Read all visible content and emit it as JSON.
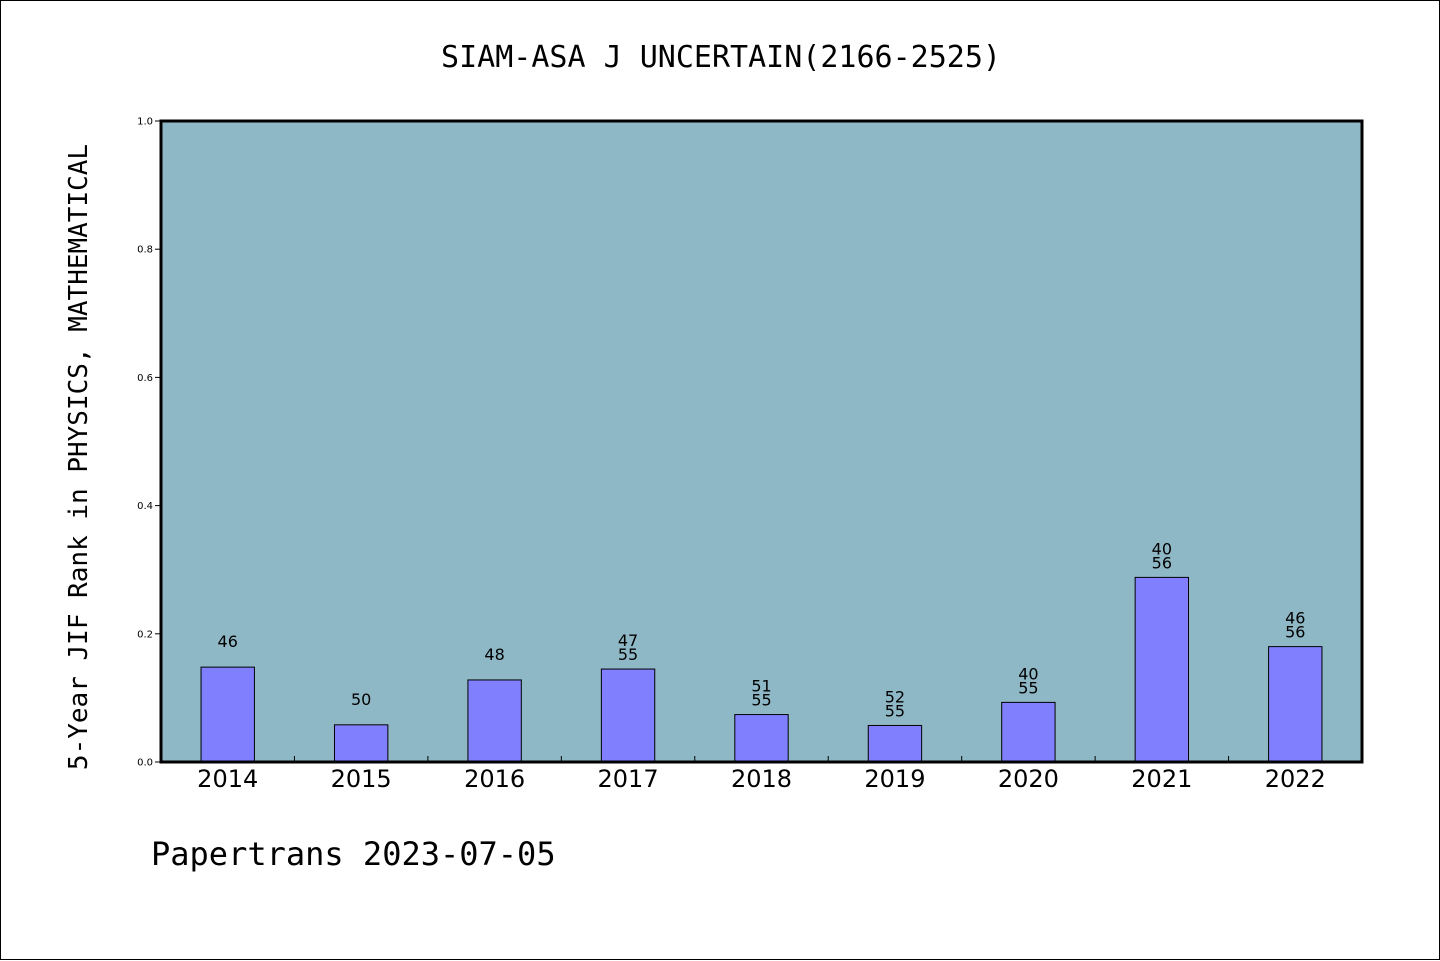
{
  "chart_data": {
    "type": "bar",
    "title": "SIAM-ASA J UNCERTAIN(2166-2525)",
    "ylabel": "5-Year JIF Rank in PHYSICS, MATHEMATICAL",
    "xlabel": "",
    "ylim": [
      0.0,
      1.0
    ],
    "yticks": [
      "0.0",
      "0.2",
      "0.4",
      "0.6",
      "0.8",
      "1.0"
    ],
    "grid": false,
    "legend": "none",
    "categories": [
      "2014",
      "2015",
      "2016",
      "2017",
      "2018",
      "2019",
      "2020",
      "2021",
      "2022"
    ],
    "values": [
      0.148,
      0.058,
      0.128,
      0.145,
      0.074,
      0.057,
      0.093,
      0.288,
      0.18
    ],
    "bar_labels": [
      [
        "46"
      ],
      [
        "50"
      ],
      [
        "48"
      ],
      [
        "47",
        "55"
      ],
      [
        "51",
        "55"
      ],
      [
        "52",
        "55"
      ],
      [
        "40",
        "55"
      ],
      [
        "40",
        "56"
      ],
      [
        "46",
        "56"
      ]
    ],
    "colors": {
      "plot_background": "#8fb8c6",
      "bar_fill": "#8080ff",
      "bar_stroke": "#000000"
    }
  },
  "footer": {
    "credit": "Papertrans 2023-07-05"
  }
}
